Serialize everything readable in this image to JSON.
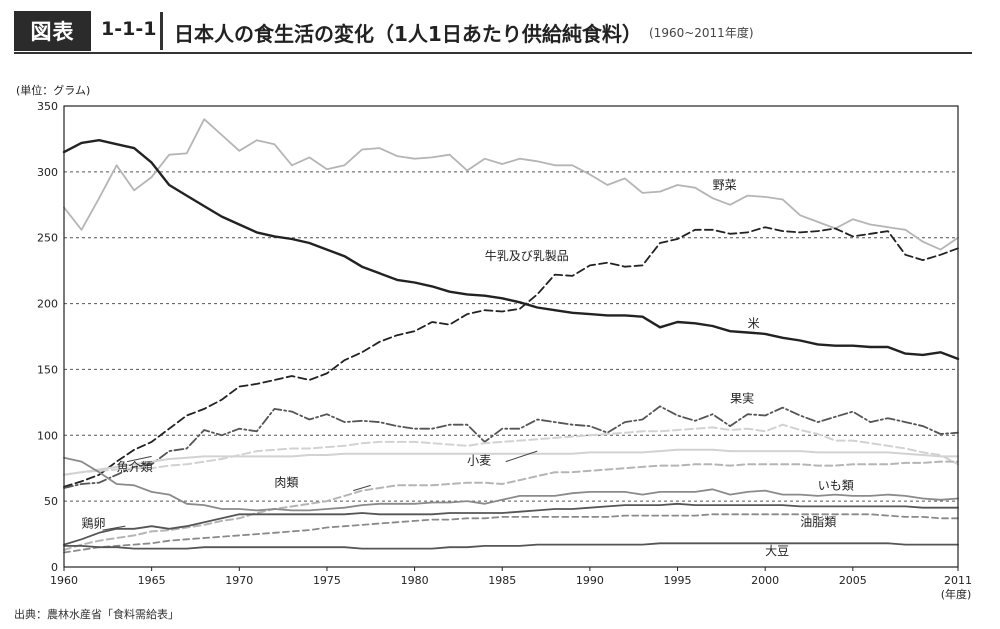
{
  "header": {
    "badge": "図表",
    "number": "1-1-1",
    "title": "日本人の食生活の変化（1人1日あたり供給純食料）",
    "subtitle": "(1960~2011年度)"
  },
  "source": "出典：農林水産省「食料需給表」",
  "colors": {
    "dark": "#222222",
    "mid": "#555555",
    "mediumGray": "#8a8a8a",
    "lightGray": "#b5b5b5",
    "paleGray": "#d2d2d2",
    "grid": "#555555"
  },
  "chart_data": {
    "type": "line",
    "ylabel": "(単位：グラム)",
    "xunit": "(年度)",
    "ylim": [
      0,
      350
    ],
    "yticks": [
      0,
      50,
      100,
      150,
      200,
      250,
      300,
      350
    ],
    "xlim": [
      1960,
      2011
    ],
    "xticks": [
      1960,
      1965,
      1970,
      1975,
      1980,
      1985,
      1990,
      1995,
      2000,
      2005,
      2011
    ],
    "grid": "horizontal dashed",
    "x": [
      1960,
      1961,
      1962,
      1963,
      1964,
      1965,
      1966,
      1967,
      1968,
      1969,
      1970,
      1971,
      1972,
      1973,
      1974,
      1975,
      1976,
      1977,
      1978,
      1979,
      1980,
      1981,
      1982,
      1983,
      1984,
      1985,
      1986,
      1987,
      1988,
      1989,
      1990,
      1991,
      1992,
      1993,
      1994,
      1995,
      1996,
      1997,
      1998,
      1999,
      2000,
      2001,
      2002,
      2003,
      2004,
      2005,
      2006,
      2007,
      2008,
      2009,
      2010,
      2011
    ],
    "series": [
      {
        "name": "野菜",
        "label_year": 1997,
        "label_value": 287,
        "values": [
          273,
          256,
          280,
          305,
          286,
          296,
          313,
          314,
          340,
          328,
          316,
          324,
          321,
          305,
          311,
          302,
          305,
          317,
          318,
          312,
          310,
          311,
          313,
          301,
          310,
          306,
          310,
          308,
          305,
          305,
          298,
          290,
          295,
          284,
          285,
          290,
          288,
          280,
          275,
          282,
          281,
          279,
          267,
          262,
          257,
          264,
          260,
          258,
          256,
          247,
          241,
          250
        ]
      },
      {
        "name": "米",
        "label_year": 1999,
        "label_value": 182,
        "values": [
          315,
          322,
          324,
          321,
          318,
          307,
          290,
          282,
          274,
          266,
          260,
          254,
          251,
          249,
          246,
          241,
          236,
          228,
          223,
          218,
          216,
          213,
          209,
          207,
          206,
          204,
          201,
          197,
          195,
          193,
          192,
          191,
          191,
          190,
          182,
          186,
          185,
          183,
          179,
          178,
          177,
          174,
          172,
          169,
          168,
          168,
          167,
          167,
          162,
          161,
          163,
          158
        ]
      },
      {
        "name": "牛乳及び乳製品",
        "label_year": 1984,
        "label_value": 233,
        "values": [
          61,
          65,
          70,
          80,
          89,
          95,
          105,
          115,
          120,
          127,
          137,
          139,
          142,
          145,
          142,
          147,
          157,
          163,
          171,
          176,
          179,
          186,
          184,
          192,
          195,
          194,
          196,
          207,
          222,
          221,
          229,
          231,
          228,
          229,
          246,
          249,
          256,
          256,
          253,
          254,
          258,
          255,
          254,
          255,
          257,
          251,
          253,
          255,
          237,
          233,
          237,
          242
        ]
      },
      {
        "name": "果実",
        "label_year": 1998,
        "label_value": 125,
        "values": [
          60,
          63,
          64,
          70,
          76,
          78,
          88,
          90,
          104,
          100,
          105,
          103,
          120,
          118,
          112,
          116,
          110,
          111,
          110,
          107,
          105,
          105,
          108,
          108,
          95,
          105,
          105,
          112,
          110,
          108,
          107,
          102,
          110,
          112,
          122,
          115,
          111,
          116,
          107,
          116,
          115,
          121,
          115,
          110,
          114,
          118,
          110,
          113,
          110,
          107,
          101,
          102
        ]
      },
      {
        "name": "小麦",
        "label_year": 1983,
        "label_value": 78,
        "values": [
          70,
          72,
          74,
          76,
          78,
          80,
          82,
          83,
          84,
          84,
          84,
          84,
          84,
          84,
          85,
          85,
          86,
          86,
          86,
          86,
          86,
          86,
          86,
          86,
          86,
          86,
          86,
          86,
          86,
          86,
          87,
          87,
          87,
          87,
          88,
          89,
          89,
          89,
          88,
          88,
          88,
          88,
          88,
          87,
          87,
          87,
          87,
          87,
          86,
          85,
          84,
          84
        ]
      },
      {
        "name": "魚介類",
        "label_year": 1963,
        "label_value": 73,
        "values": [
          70,
          72,
          73,
          74,
          75,
          75,
          77,
          78,
          80,
          82,
          85,
          88,
          89,
          90,
          90,
          91,
          92,
          94,
          95,
          95,
          95,
          94,
          93,
          92,
          94,
          95,
          96,
          97,
          98,
          99,
          100,
          101,
          102,
          103,
          103,
          104,
          105,
          106,
          104,
          105,
          103,
          108,
          104,
          101,
          96,
          96,
          94,
          92,
          90,
          87,
          85,
          78
        ]
      },
      {
        "name": "肉類",
        "label_year": 1972,
        "label_value": 61,
        "values": [
          13,
          17,
          20,
          22,
          24,
          27,
          28,
          30,
          32,
          35,
          37,
          41,
          44,
          46,
          48,
          50,
          54,
          58,
          60,
          62,
          62,
          62,
          63,
          64,
          64,
          63,
          66,
          69,
          72,
          72,
          73,
          74,
          75,
          76,
          77,
          77,
          78,
          78,
          77,
          78,
          78,
          78,
          78,
          77,
          77,
          78,
          78,
          78,
          79,
          79,
          80,
          80
        ]
      },
      {
        "name": "いも類",
        "label_year": 2003,
        "label_value": 59,
        "values": [
          83,
          80,
          72,
          63,
          62,
          57,
          55,
          48,
          47,
          44,
          44,
          43,
          44,
          43,
          43,
          44,
          45,
          47,
          48,
          48,
          48,
          49,
          49,
          50,
          48,
          51,
          54,
          54,
          54,
          56,
          57,
          57,
          57,
          55,
          57,
          57,
          57,
          59,
          55,
          57,
          58,
          55,
          55,
          54,
          55,
          54,
          54,
          55,
          54,
          52,
          51,
          52
        ]
      },
      {
        "name": "鶏卵",
        "label_year": 1961,
        "label_value": 30,
        "values": [
          17,
          21,
          26,
          29,
          29,
          31,
          29,
          31,
          34,
          37,
          40,
          40,
          40,
          40,
          40,
          40,
          40,
          41,
          40,
          40,
          40,
          40,
          41,
          41,
          41,
          41,
          42,
          43,
          44,
          44,
          45,
          46,
          47,
          47,
          47,
          48,
          47,
          47,
          47,
          47,
          47,
          47,
          46,
          46,
          46,
          46,
          46,
          46,
          46,
          45,
          45,
          45
        ]
      },
      {
        "name": "油脂類",
        "label_year": 2002,
        "label_value": 31,
        "values": [
          11,
          13,
          15,
          16,
          17,
          18,
          20,
          21,
          22,
          23,
          24,
          25,
          26,
          27,
          28,
          30,
          31,
          32,
          33,
          34,
          35,
          36,
          36,
          37,
          37,
          38,
          38,
          38,
          38,
          38,
          38,
          38,
          39,
          39,
          39,
          39,
          39,
          40,
          40,
          40,
          40,
          40,
          40,
          40,
          40,
          40,
          40,
          39,
          38,
          38,
          37,
          37
        ]
      },
      {
        "name": "大豆",
        "label_year": 2000,
        "label_value": 9,
        "values": [
          16,
          16,
          15,
          15,
          14,
          14,
          14,
          14,
          15,
          15,
          15,
          15,
          15,
          15,
          15,
          15,
          15,
          14,
          14,
          14,
          14,
          14,
          15,
          15,
          16,
          16,
          16,
          17,
          17,
          17,
          17,
          17,
          17,
          17,
          18,
          18,
          18,
          18,
          18,
          18,
          18,
          18,
          18,
          18,
          18,
          18,
          18,
          18,
          17,
          17,
          17,
          17
        ]
      }
    ]
  }
}
